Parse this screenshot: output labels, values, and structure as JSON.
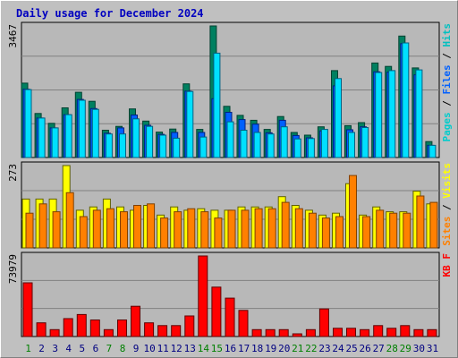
{
  "title": "Daily usage for December 2024",
  "colors": {
    "background": "#c0c0c0",
    "plot_bg": "#b8b8b8",
    "title": "#0000c0",
    "hits": "#00c0c0",
    "hits_bar": "#00e0ff",
    "files": "#0060ff",
    "pages": "#00cccc",
    "pages_bar": "#008060",
    "visits": "#ffff00",
    "sites": "#ff8000",
    "kbytes": "#ff0000",
    "weekend_label": "#008000",
    "weekday_label": "#000080"
  },
  "chart_data": [
    {
      "type": "bar",
      "panel": "hits",
      "y_max_label": "3467",
      "ylim": [
        0,
        3467
      ],
      "legend": [
        "Pages",
        "Files",
        "Hits"
      ],
      "x": [
        1,
        2,
        3,
        4,
        5,
        6,
        7,
        8,
        9,
        10,
        11,
        12,
        13,
        14,
        15,
        16,
        17,
        18,
        19,
        20,
        21,
        22,
        23,
        24,
        25,
        26,
        27,
        28,
        29,
        30,
        31
      ],
      "series": [
        {
          "name": "Pages",
          "values": [
            1960,
            1160,
            900,
            1310,
            1720,
            1480,
            720,
            820,
            1280,
            960,
            670,
            750,
            1940,
            740,
            3467,
            1350,
            1110,
            980,
            740,
            1080,
            660,
            590,
            810,
            2290,
            840,
            920,
            2490,
            2400,
            3200,
            2360,
            420
          ]
        },
        {
          "name": "Files",
          "values": [
            1800,
            1040,
            780,
            1130,
            1530,
            1290,
            640,
            780,
            1120,
            850,
            610,
            660,
            1750,
            660,
            1550,
            1190,
            1000,
            880,
            650,
            980,
            580,
            520,
            700,
            1890,
            730,
            810,
            2260,
            2250,
            3000,
            2180,
            320
          ]
        },
        {
          "name": "Hits",
          "values": [
            1790,
            1040,
            780,
            1130,
            1510,
            1270,
            620,
            620,
            1020,
            820,
            590,
            510,
            1740,
            540,
            2750,
            940,
            720,
            660,
            620,
            810,
            490,
            500,
            740,
            2080,
            660,
            790,
            2240,
            2290,
            3020,
            2310,
            320
          ]
        }
      ]
    },
    {
      "type": "bar",
      "panel": "visits",
      "y_max_label": "273",
      "ylim": [
        0,
        273
      ],
      "legend": [
        "Sites",
        "Visits"
      ],
      "x": [
        1,
        2,
        3,
        4,
        5,
        6,
        7,
        8,
        9,
        10,
        11,
        12,
        13,
        14,
        15,
        16,
        17,
        18,
        19,
        20,
        21,
        22,
        23,
        24,
        25,
        26,
        27,
        28,
        29,
        30,
        31
      ],
      "series": [
        {
          "name": "Visits",
          "values": [
            162,
            162,
            162,
            273,
            125,
            136,
            162,
            136,
            125,
            141,
            109,
            136,
            125,
            130,
            125,
            125,
            136,
            136,
            136,
            170,
            141,
            125,
            109,
            115,
            213,
            109,
            136,
            120,
            120,
            188,
            146
          ]
        },
        {
          "name": "Sites",
          "values": [
            115,
            146,
            120,
            183,
            104,
            125,
            130,
            120,
            141,
            146,
            99,
            120,
            130,
            120,
            99,
            125,
            125,
            130,
            130,
            151,
            130,
            115,
            99,
            104,
            240,
            104,
            125,
            115,
            115,
            172,
            151
          ]
        }
      ]
    },
    {
      "type": "bar",
      "panel": "kbytes",
      "y_max_label": "73979",
      "ylim": [
        0,
        73979
      ],
      "legend": [
        "KB F"
      ],
      "x": [
        1,
        2,
        3,
        4,
        5,
        6,
        7,
        8,
        9,
        10,
        11,
        12,
        13,
        14,
        15,
        16,
        17,
        18,
        19,
        20,
        21,
        22,
        23,
        24,
        25,
        26,
        27,
        28,
        29,
        30,
        31
      ],
      "series": [
        {
          "name": "KB F",
          "values": [
            49300,
            12600,
            6300,
            16400,
            20200,
            15200,
            6300,
            15200,
            27800,
            12600,
            10000,
            10000,
            18900,
            73979,
            45400,
            35300,
            24000,
            6300,
            6300,
            6300,
            2500,
            6300,
            25300,
            7600,
            7600,
            6300,
            10000,
            7600,
            10000,
            6300,
            6300
          ]
        }
      ]
    }
  ],
  "x_labels": [
    "1",
    "2",
    "3",
    "4",
    "5",
    "6",
    "7",
    "8",
    "9",
    "10",
    "11",
    "12",
    "13",
    "14",
    "15",
    "16",
    "17",
    "18",
    "19",
    "20",
    "21",
    "22",
    "23",
    "24",
    "25",
    "26",
    "27",
    "28",
    "29",
    "30",
    "31"
  ],
  "weekend_days": [
    1,
    7,
    8,
    14,
    15,
    21,
    22,
    28,
    29
  ]
}
